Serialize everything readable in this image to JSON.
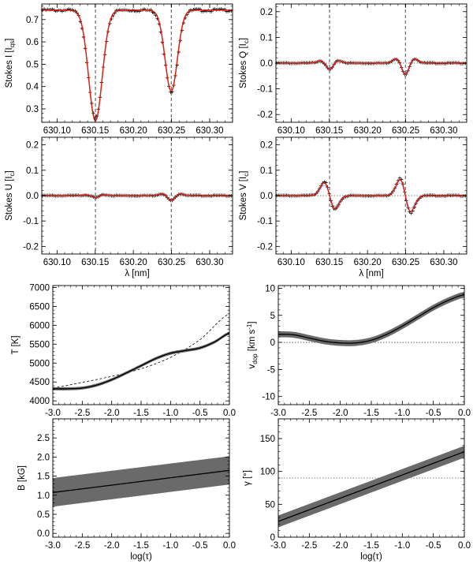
{
  "figure": {
    "description_free": true
  },
  "colors": {
    "observed": "#000000",
    "fit": "#dd1e10",
    "fit_secondary": "#3a7ad8",
    "band": "#6a6a6a",
    "guide": "#000000"
  },
  "chart_data": [
    {
      "id": "stokes_i",
      "type": "line",
      "ylabel_main": "Stokes I [",
      "ylabel_sub": "I",
      "ylabel_subsub": "qs",
      "ylabel_end": "]",
      "xlabel": "",
      "xlim": [
        630.08,
        630.33
      ],
      "ylim": [
        0.24,
        0.77
      ],
      "xticks": [
        630.1,
        630.15,
        630.2,
        630.25,
        630.3
      ],
      "xtick_labels": [
        "630.10",
        "630.15",
        "630.20",
        "630.25",
        "630.30"
      ],
      "yticks": [
        0.3,
        0.4,
        0.5,
        0.6,
        0.7
      ],
      "ytick_labels": [
        "0.3",
        "0.4",
        "0.5",
        "0.6",
        "0.7"
      ],
      "vlines": [
        630.1503,
        630.2496
      ],
      "continuum": 0.742,
      "lines": [
        {
          "center": 630.1503,
          "depth": 0.485,
          "width": 0.0092
        },
        {
          "center": 630.2496,
          "depth": 0.37,
          "width": 0.0083
        }
      ],
      "series": [
        {
          "name": "observed",
          "style": "plus"
        },
        {
          "name": "fit",
          "style": "line"
        }
      ]
    },
    {
      "id": "stokes_q",
      "type": "line",
      "ylabel_main": "Stokes Q [",
      "ylabel_sub": "I",
      "ylabel_subsub": "c",
      "ylabel_end": "]",
      "xlabel": "",
      "xlim": [
        630.08,
        630.33
      ],
      "ylim": [
        -0.23,
        0.23
      ],
      "xticks": [
        630.1,
        630.15,
        630.2,
        630.25,
        630.3
      ],
      "xtick_labels": [
        "630.10",
        "630.15",
        "630.20",
        "630.25",
        "630.30"
      ],
      "yticks": [
        -0.2,
        -0.1,
        0.0,
        0.1,
        0.2
      ],
      "ytick_labels": [
        "-0.2",
        "-0.1",
        "0.0",
        "0.1",
        "0.2"
      ],
      "vlines": [
        630.1503,
        630.2496
      ],
      "hline": 0.0,
      "features": [
        {
          "center": 630.1503,
          "amp": -0.025,
          "shape": "w"
        },
        {
          "center": 630.2496,
          "amp": -0.045,
          "shape": "w"
        }
      ],
      "series": [
        {
          "name": "observed",
          "style": "plus"
        },
        {
          "name": "fit",
          "style": "line"
        }
      ]
    },
    {
      "id": "stokes_u",
      "type": "line",
      "ylabel_main": "Stokes U [",
      "ylabel_sub": "I",
      "ylabel_subsub": "c",
      "ylabel_end": "]",
      "xlabel": "λ [nm]",
      "xlim": [
        630.08,
        630.33
      ],
      "ylim": [
        -0.23,
        0.23
      ],
      "xticks": [
        630.1,
        630.15,
        630.2,
        630.25,
        630.3
      ],
      "xtick_labels": [
        "630.10",
        "630.15",
        "630.20",
        "630.25",
        "630.30"
      ],
      "yticks": [
        -0.2,
        -0.1,
        0.0,
        0.1,
        0.2
      ],
      "ytick_labels": [
        "-0.2",
        "-0.1",
        "0.0",
        "0.1",
        "0.2"
      ],
      "vlines": [
        630.1503,
        630.2496
      ],
      "hline": 0.0,
      "features": [
        {
          "center": 630.1503,
          "amp": -0.008,
          "shape": "w"
        },
        {
          "center": 630.2496,
          "amp": -0.02,
          "shape": "w"
        }
      ],
      "series": [
        {
          "name": "observed",
          "style": "plus"
        },
        {
          "name": "fit",
          "style": "line"
        }
      ]
    },
    {
      "id": "stokes_v",
      "type": "line",
      "ylabel_main": "Stokes V [",
      "ylabel_sub": "I",
      "ylabel_subsub": "c",
      "ylabel_end": "]",
      "xlabel": "λ [nm]",
      "xlim": [
        630.08,
        630.33
      ],
      "ylim": [
        -0.23,
        0.23
      ],
      "xticks": [
        630.1,
        630.15,
        630.2,
        630.25,
        630.3
      ],
      "xtick_labels": [
        "630.10",
        "630.15",
        "630.20",
        "630.25",
        "630.30"
      ],
      "yticks": [
        -0.2,
        -0.1,
        0.0,
        0.1,
        0.2
      ],
      "ytick_labels": [
        "-0.2",
        "-0.1",
        "0.0",
        "0.1",
        "0.2"
      ],
      "vlines": [
        630.1503,
        630.2496
      ],
      "hline": 0.0,
      "features": [
        {
          "center": 630.1503,
          "amp": 0.055,
          "shape": "antisym"
        },
        {
          "center": 630.2496,
          "amp": 0.068,
          "shape": "antisym"
        }
      ],
      "series": [
        {
          "name": "observed",
          "style": "plus"
        },
        {
          "name": "fit",
          "style": "line"
        }
      ]
    },
    {
      "id": "temperature",
      "type": "area",
      "ylabel": "T [K]",
      "xlabel": "",
      "xlim": [
        -3.0,
        0.0
      ],
      "ylim": [
        3900,
        7050
      ],
      "xticks": [
        -3.0,
        -2.5,
        -2.0,
        -1.5,
        -1.0,
        -0.5,
        0.0
      ],
      "xtick_labels": [
        "-3.0",
        "-2.5",
        "-2.0",
        "-1.5",
        "-1.0",
        "-0.5",
        "0.0"
      ],
      "yticks": [
        4000,
        4500,
        5000,
        5500,
        6000,
        6500,
        7000
      ],
      "ytick_labels": [
        "4000",
        "4500",
        "5000",
        "5500",
        "6000",
        "6500",
        "7000"
      ],
      "x": [
        -3.0,
        -2.75,
        -2.5,
        -2.25,
        -2.0,
        -1.75,
        -1.5,
        -1.25,
        -1.0,
        -0.75,
        -0.5,
        -0.25,
        0.0
      ],
      "y": [
        4320,
        4320,
        4340,
        4420,
        4560,
        4740,
        4930,
        5120,
        5260,
        5330,
        5400,
        5560,
        5790
      ],
      "band": 40,
      "reference_x": [
        -3.0,
        -2.5,
        -2.0,
        -1.5,
        -1.0,
        -0.5,
        0.0
      ],
      "reference_y": [
        4350,
        4490,
        4650,
        4850,
        5150,
        5620,
        6300
      ]
    },
    {
      "id": "velocity",
      "type": "area",
      "ylabel": "v",
      "ylabel_sub": "dop",
      "ylabel_rest": " [km s",
      "ylabel_sup": "-1",
      "ylabel_end": "]",
      "xlabel": "",
      "xlim": [
        -3.0,
        0.0
      ],
      "ylim": [
        -11.5,
        10.5
      ],
      "xticks": [
        -3.0,
        -2.5,
        -2.0,
        -1.5,
        -1.0,
        -0.5,
        0.0
      ],
      "xtick_labels": [
        "-3.0",
        "-2.5",
        "-2.0",
        "-1.5",
        "-1.0",
        "-0.5",
        "0.0"
      ],
      "yticks": [
        -10,
        -5,
        0,
        5,
        10
      ],
      "ytick_labels": [
        "-10",
        "-5",
        "0",
        "5",
        "10"
      ],
      "hline": 0,
      "x": [
        -3.0,
        -2.75,
        -2.5,
        -2.25,
        -2.0,
        -1.75,
        -1.5,
        -1.25,
        -1.0,
        -0.75,
        -0.5,
        -0.25,
        0.0
      ],
      "y": [
        1.5,
        1.4,
        0.8,
        0.2,
        -0.1,
        -0.1,
        0.4,
        1.5,
        3.0,
        4.7,
        6.4,
        7.8,
        8.8
      ],
      "band": 0.55
    },
    {
      "id": "field",
      "type": "area",
      "ylabel": "B [kG]",
      "xlabel": "log(τ)",
      "xlim": [
        -3.0,
        0.0
      ],
      "ylim": [
        -0.1,
        3.0
      ],
      "xticks": [
        -3.0,
        -2.5,
        -2.0,
        -1.5,
        -1.0,
        -0.5,
        0.0
      ],
      "xtick_labels": [
        "-3.0",
        "-2.5",
        "-2.0",
        "-1.5",
        "-1.0",
        "-0.5",
        "0.0"
      ],
      "yticks": [
        0.0,
        0.5,
        1.0,
        1.5,
        2.0,
        2.5
      ],
      "ytick_labels": [
        "0.0",
        "0.5",
        "1.0",
        "1.5",
        "2.0",
        "2.5"
      ],
      "x": [
        -3.0,
        0.0
      ],
      "y": [
        1.07,
        1.65
      ],
      "band_low": [
        0.7,
        1.28
      ],
      "band_high": [
        1.45,
        2.02
      ]
    },
    {
      "id": "inclination",
      "type": "area",
      "ylabel": "γ [°]",
      "xlabel": "log(τ)",
      "xlim": [
        -3.0,
        0.0
      ],
      "ylim": [
        0,
        180
      ],
      "xticks": [
        -3.0,
        -2.5,
        -2.0,
        -1.5,
        -1.0,
        -0.5,
        0.0
      ],
      "xtick_labels": [
        "-3.0",
        "-2.5",
        "-2.0",
        "-1.5",
        "-1.0",
        "-0.5",
        "0.0"
      ],
      "yticks": [
        0,
        50,
        100,
        150
      ],
      "ytick_labels": [
        "0",
        "50",
        "100",
        "150"
      ],
      "hline": 90,
      "x": [
        -3.0,
        0.0
      ],
      "y": [
        24,
        130
      ],
      "band": 9
    }
  ]
}
